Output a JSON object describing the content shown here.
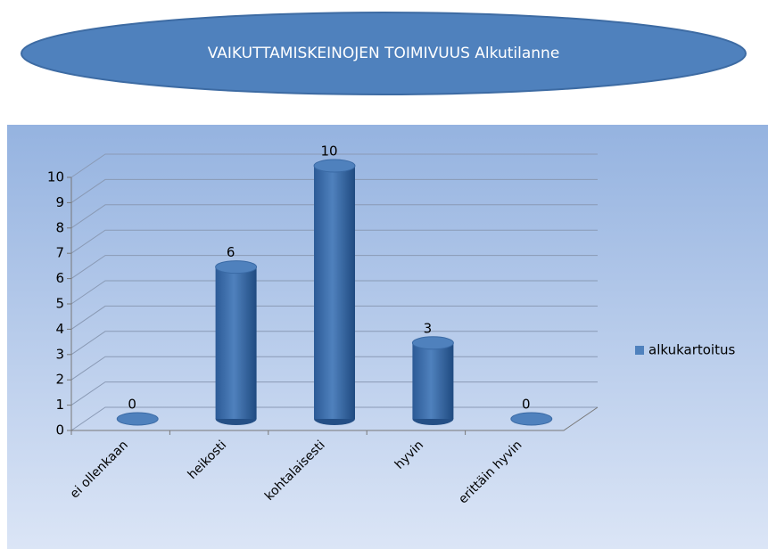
{
  "chart_data": {
    "type": "bar",
    "title": "VAIKUTTAMISKEINOJEN  TOIMIVUUS  Alkutilanne",
    "categories": [
      "ei ollenkaan",
      "heikosti",
      "kohtalaisesti",
      "hyvin",
      "erittäin hyvin"
    ],
    "series": [
      {
        "name": "alkukartoitus",
        "color": "#4f81bd",
        "values": [
          0,
          6,
          10,
          3,
          0
        ]
      }
    ],
    "ylim": [
      0,
      10
    ],
    "yticks": [
      0,
      1,
      2,
      3,
      4,
      5,
      6,
      7,
      8,
      9,
      10
    ],
    "grid": true,
    "legend": "right"
  }
}
